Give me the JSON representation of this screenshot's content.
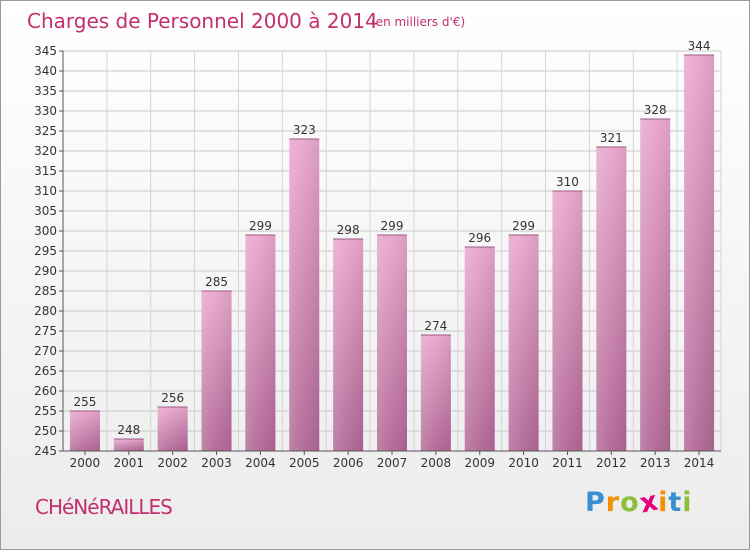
{
  "chart_data": {
    "type": "bar",
    "title": "Charges de Personnel 2000 à 2014",
    "subtitle": "(en milliers d'€)",
    "categories": [
      "2000",
      "2001",
      "2002",
      "2003",
      "2004",
      "2005",
      "2006",
      "2007",
      "2008",
      "2009",
      "2010",
      "2011",
      "2012",
      "2013",
      "2014"
    ],
    "values": [
      255,
      248,
      256,
      285,
      299,
      323,
      298,
      299,
      274,
      296,
      299,
      310,
      321,
      328,
      344
    ],
    "ylim": [
      245,
      345
    ],
    "yticks": [
      245,
      250,
      255,
      260,
      265,
      270,
      275,
      280,
      285,
      290,
      295,
      300,
      305,
      310,
      315,
      320,
      325,
      330,
      335,
      340,
      345
    ],
    "grid": true,
    "bar_color": "#cc6699"
  },
  "location": "CHéNéRAILLES",
  "logo": {
    "letters": [
      "P",
      "r",
      "o",
      "x",
      "i",
      "t",
      "i"
    ],
    "colors": [
      "#3a8fd0",
      "#f39200",
      "#8dbf3c",
      "#e4007d",
      "#f39200",
      "#3a8fd0",
      "#8dbf3c"
    ]
  }
}
